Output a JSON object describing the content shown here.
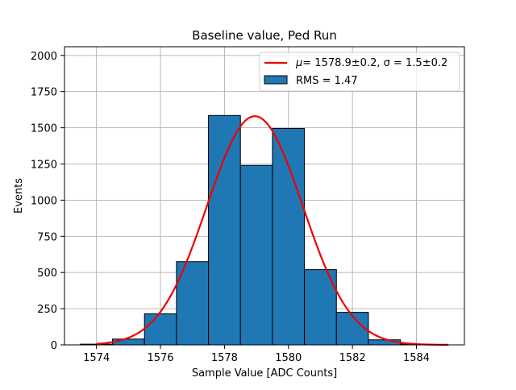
{
  "chart_data": {
    "type": "bar",
    "title": "Baseline value, Ped Run",
    "xlabel": "Sample Value [ADC Counts]",
    "ylabel": "Events",
    "xlim": [
      1573.0,
      1585.5
    ],
    "ylim": [
      0,
      2060
    ],
    "grid": true,
    "xticks": [
      1574,
      1576,
      1578,
      1580,
      1582,
      1584
    ],
    "yticks": [
      0,
      250,
      500,
      750,
      1000,
      1250,
      1500,
      1750,
      2000
    ],
    "legend_position": "top-right",
    "histogram": {
      "name": "RMS = 1.47",
      "color": "#1f77b4",
      "edgecolor": "#000000",
      "bins": [
        {
          "left": 1573.5,
          "right": 1574.5,
          "count": 5
        },
        {
          "left": 1574.5,
          "right": 1575.5,
          "count": 40
        },
        {
          "left": 1575.5,
          "right": 1576.5,
          "count": 215
        },
        {
          "left": 1576.5,
          "right": 1577.5,
          "count": 575
        },
        {
          "left": 1577.5,
          "right": 1578.5,
          "count": 1585
        },
        {
          "left": 1578.5,
          "right": 1579.5,
          "count": 1240
        },
        {
          "left": 1579.5,
          "right": 1580.5,
          "count": 1495
        },
        {
          "left": 1580.5,
          "right": 1581.5,
          "count": 520
        },
        {
          "left": 1581.5,
          "right": 1582.5,
          "count": 225
        },
        {
          "left": 1582.5,
          "right": 1583.5,
          "count": 35
        },
        {
          "left": 1583.5,
          "right": 1584.5,
          "count": 5
        }
      ]
    },
    "fit": {
      "name_prefix_mu": "μ",
      "name_prefix_sigma": "σ",
      "label": "= 1578.9±0.2,  σ = 1.5±0.2",
      "mu": 1578.95,
      "sigma": 1.5,
      "amplitude": 1580,
      "x_range": [
        1574.0,
        1585.0
      ],
      "color": "#ee0000"
    }
  }
}
